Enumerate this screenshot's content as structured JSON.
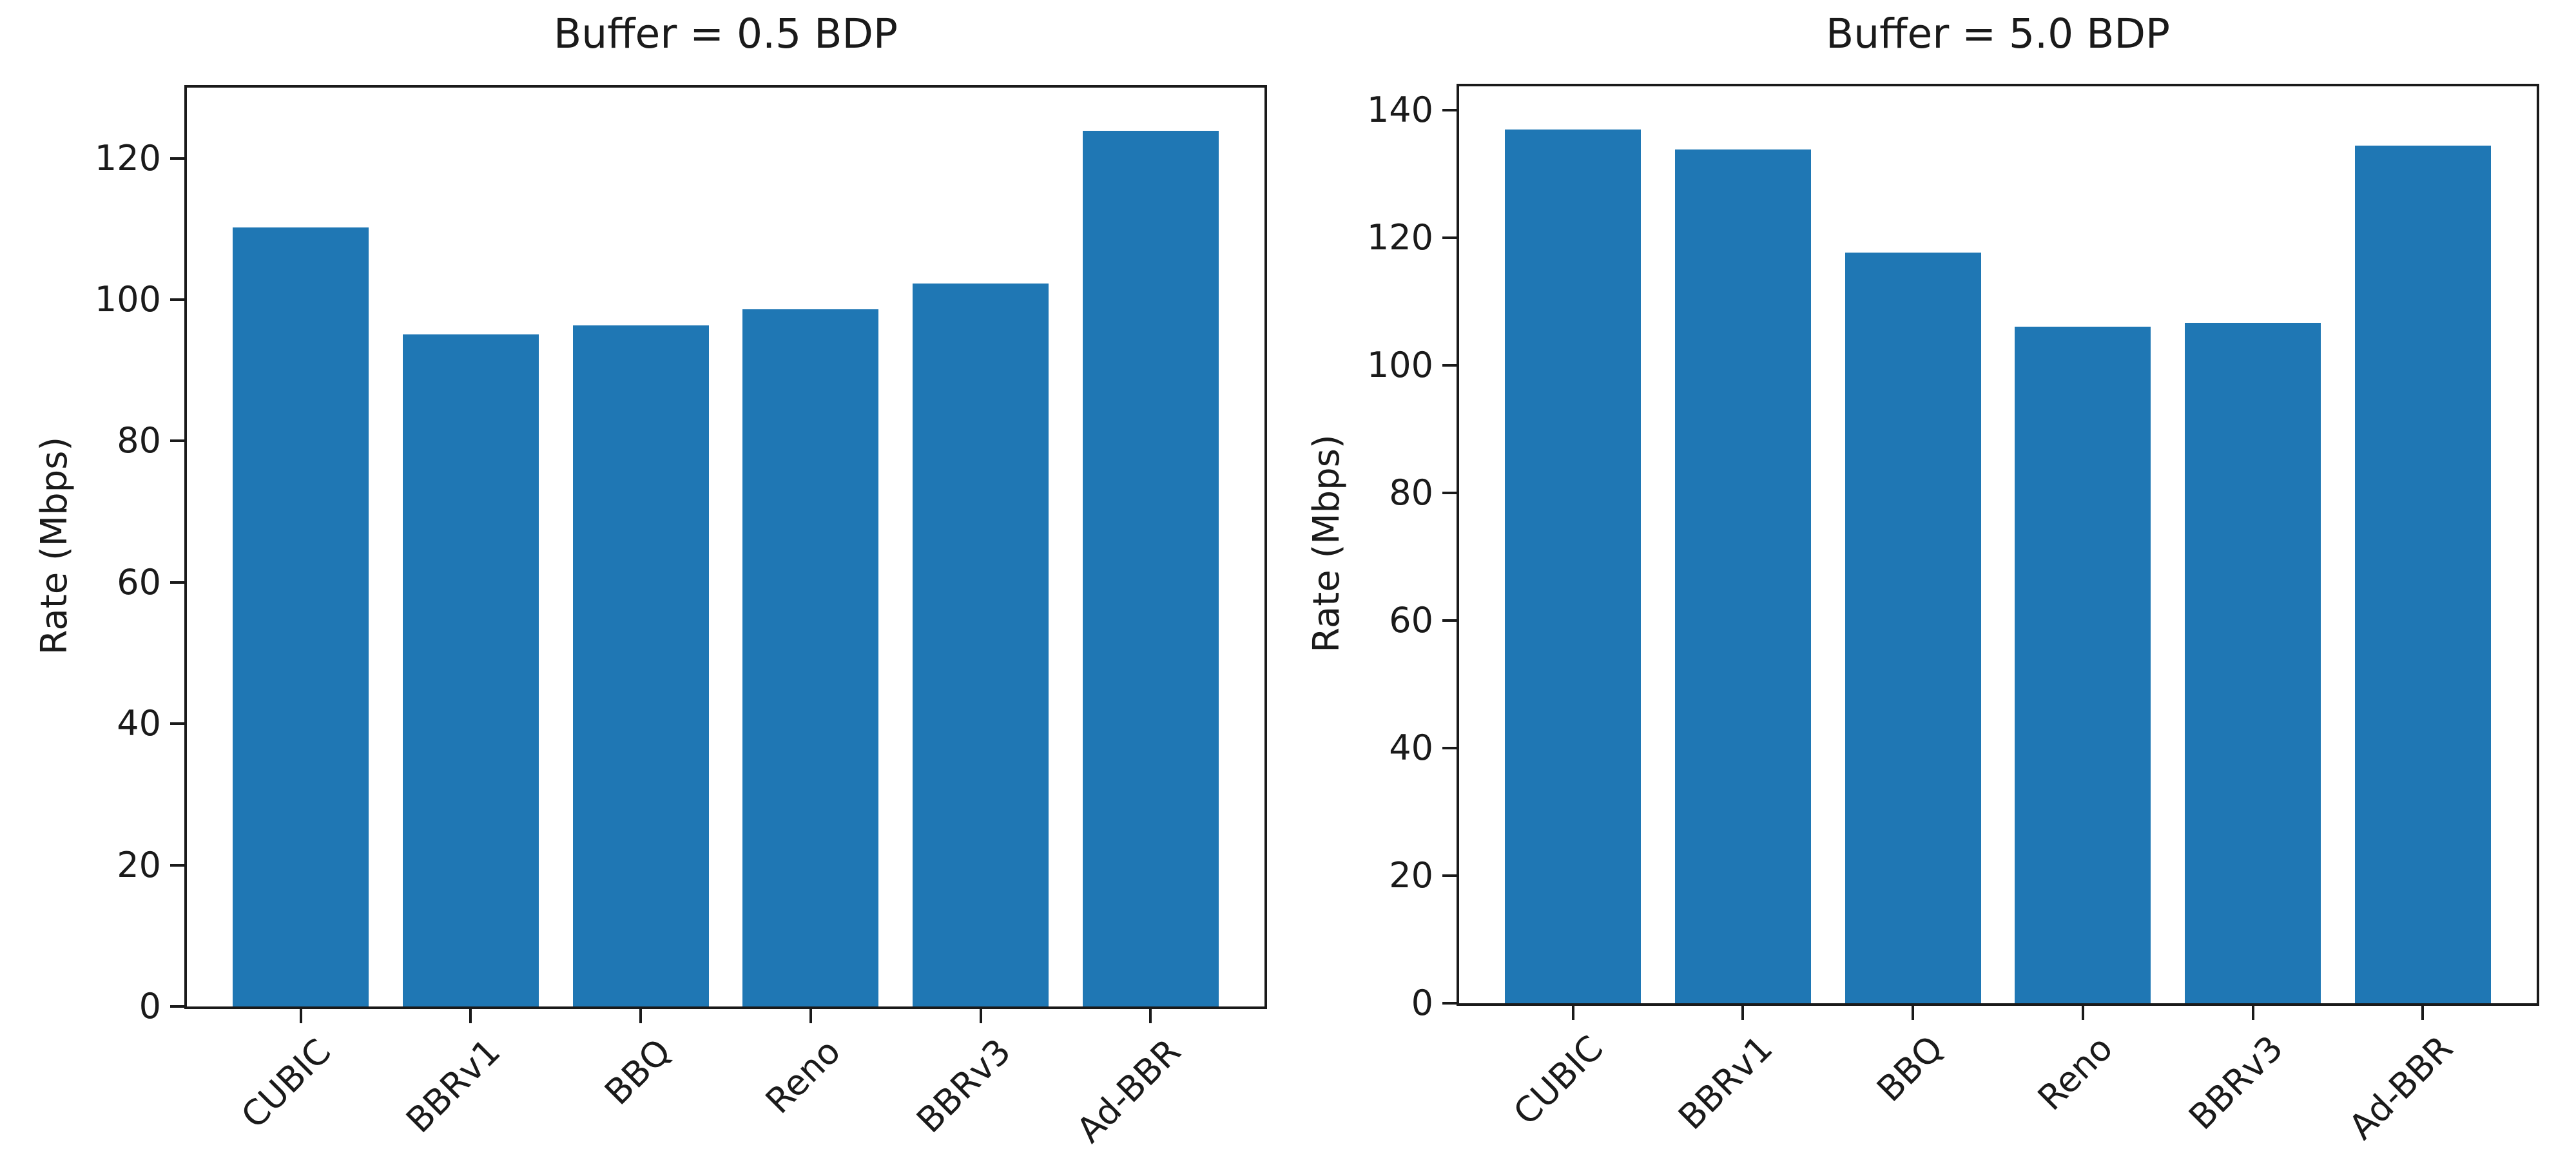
{
  "figure": {
    "background": "#ffffff",
    "bar_color": "#1f77b4",
    "axis_color": "#1a1a1a",
    "text_color": "#1a1a1a"
  },
  "chart_data": [
    {
      "type": "bar",
      "title": "Buffer = 0.5 BDP",
      "xlabel": "",
      "ylabel": "Rate (Mbps)",
      "categories": [
        "CUBIC",
        "BBRv1",
        "BBQ",
        "Reno",
        "BBRv3",
        "Ad-BBR"
      ],
      "values": [
        110.2,
        95.1,
        96.4,
        98.6,
        102.3,
        123.9
      ],
      "ylim": [
        0,
        130
      ],
      "yticks": [
        0,
        20,
        40,
        60,
        80,
        100,
        120
      ],
      "grid": false,
      "legend": null,
      "bar_width_fraction": 0.8,
      "x_margin_units": 0.67
    },
    {
      "type": "bar",
      "title": "Buffer = 5.0 BDP",
      "xlabel": "",
      "ylabel": "Rate (Mbps)",
      "categories": [
        "CUBIC",
        "BBRv1",
        "BBQ",
        "Reno",
        "BBRv3",
        "Ad-BBR"
      ],
      "values": [
        136.9,
        133.8,
        117.6,
        106.0,
        106.6,
        134.4
      ],
      "ylim": [
        0,
        143.7
      ],
      "yticks": [
        0,
        20,
        40,
        60,
        80,
        100,
        120,
        140
      ],
      "grid": false,
      "legend": null,
      "bar_width_fraction": 0.8,
      "x_margin_units": 0.67
    }
  ]
}
